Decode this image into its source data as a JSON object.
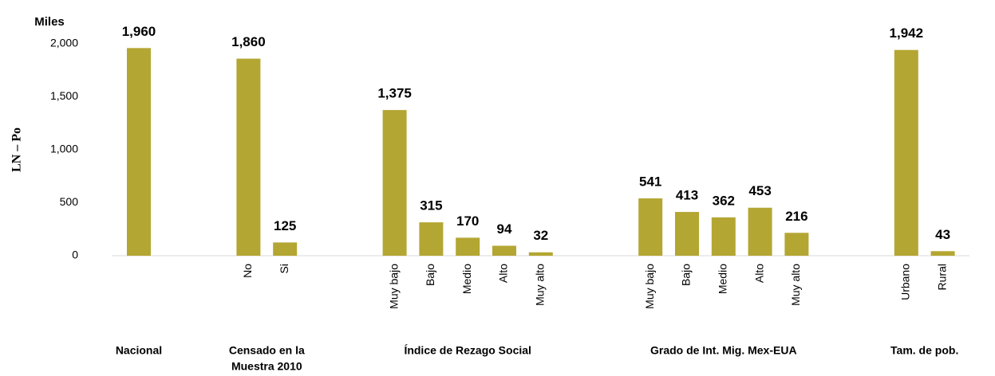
{
  "chart_data": {
    "type": "bar",
    "unit_label": "Miles",
    "y_label": "LN – Po",
    "color": "#b4a632",
    "ylim": [
      0,
      2000
    ],
    "yticks": [
      0,
      500,
      {
        "value": 1000,
        "label": "1,000"
      },
      {
        "value": 1500,
        "label": "1,500"
      },
      {
        "value": 2000,
        "label": "2,000"
      }
    ],
    "grid": false,
    "groups": [
      {
        "label": [
          "Nacional"
        ],
        "categories": [
          null
        ],
        "values": [
          1960
        ],
        "value_labels": [
          "1,960"
        ]
      },
      {
        "label": [
          "Censado en la",
          "Muestra 2010"
        ],
        "categories": [
          "No",
          "Si"
        ],
        "values": [
          1860,
          125
        ],
        "value_labels": [
          "1,860",
          "125"
        ]
      },
      {
        "label": [
          "Índice de Rezago Social"
        ],
        "categories": [
          "Muy bajo",
          "Bajo",
          "Medio",
          "Alto",
          "Muy alto"
        ],
        "values": [
          1375,
          315,
          170,
          94,
          32
        ],
        "value_labels": [
          "1,375",
          "315",
          "170",
          "94",
          "32"
        ]
      },
      {
        "label": [
          "Grado de Int. Mig. Mex-EUA"
        ],
        "categories": [
          "Muy bajo",
          "Bajo",
          "Medio",
          "Alto",
          "Muy alto"
        ],
        "values": [
          541,
          413,
          362,
          453,
          216
        ],
        "value_labels": [
          "541",
          "413",
          "362",
          "453",
          "216"
        ]
      },
      {
        "label": [
          "Tam. de pob."
        ],
        "categories": [
          "Urbano",
          "Rural"
        ],
        "values": [
          1942,
          43
        ],
        "value_labels": [
          "1,942",
          "43"
        ]
      }
    ]
  }
}
